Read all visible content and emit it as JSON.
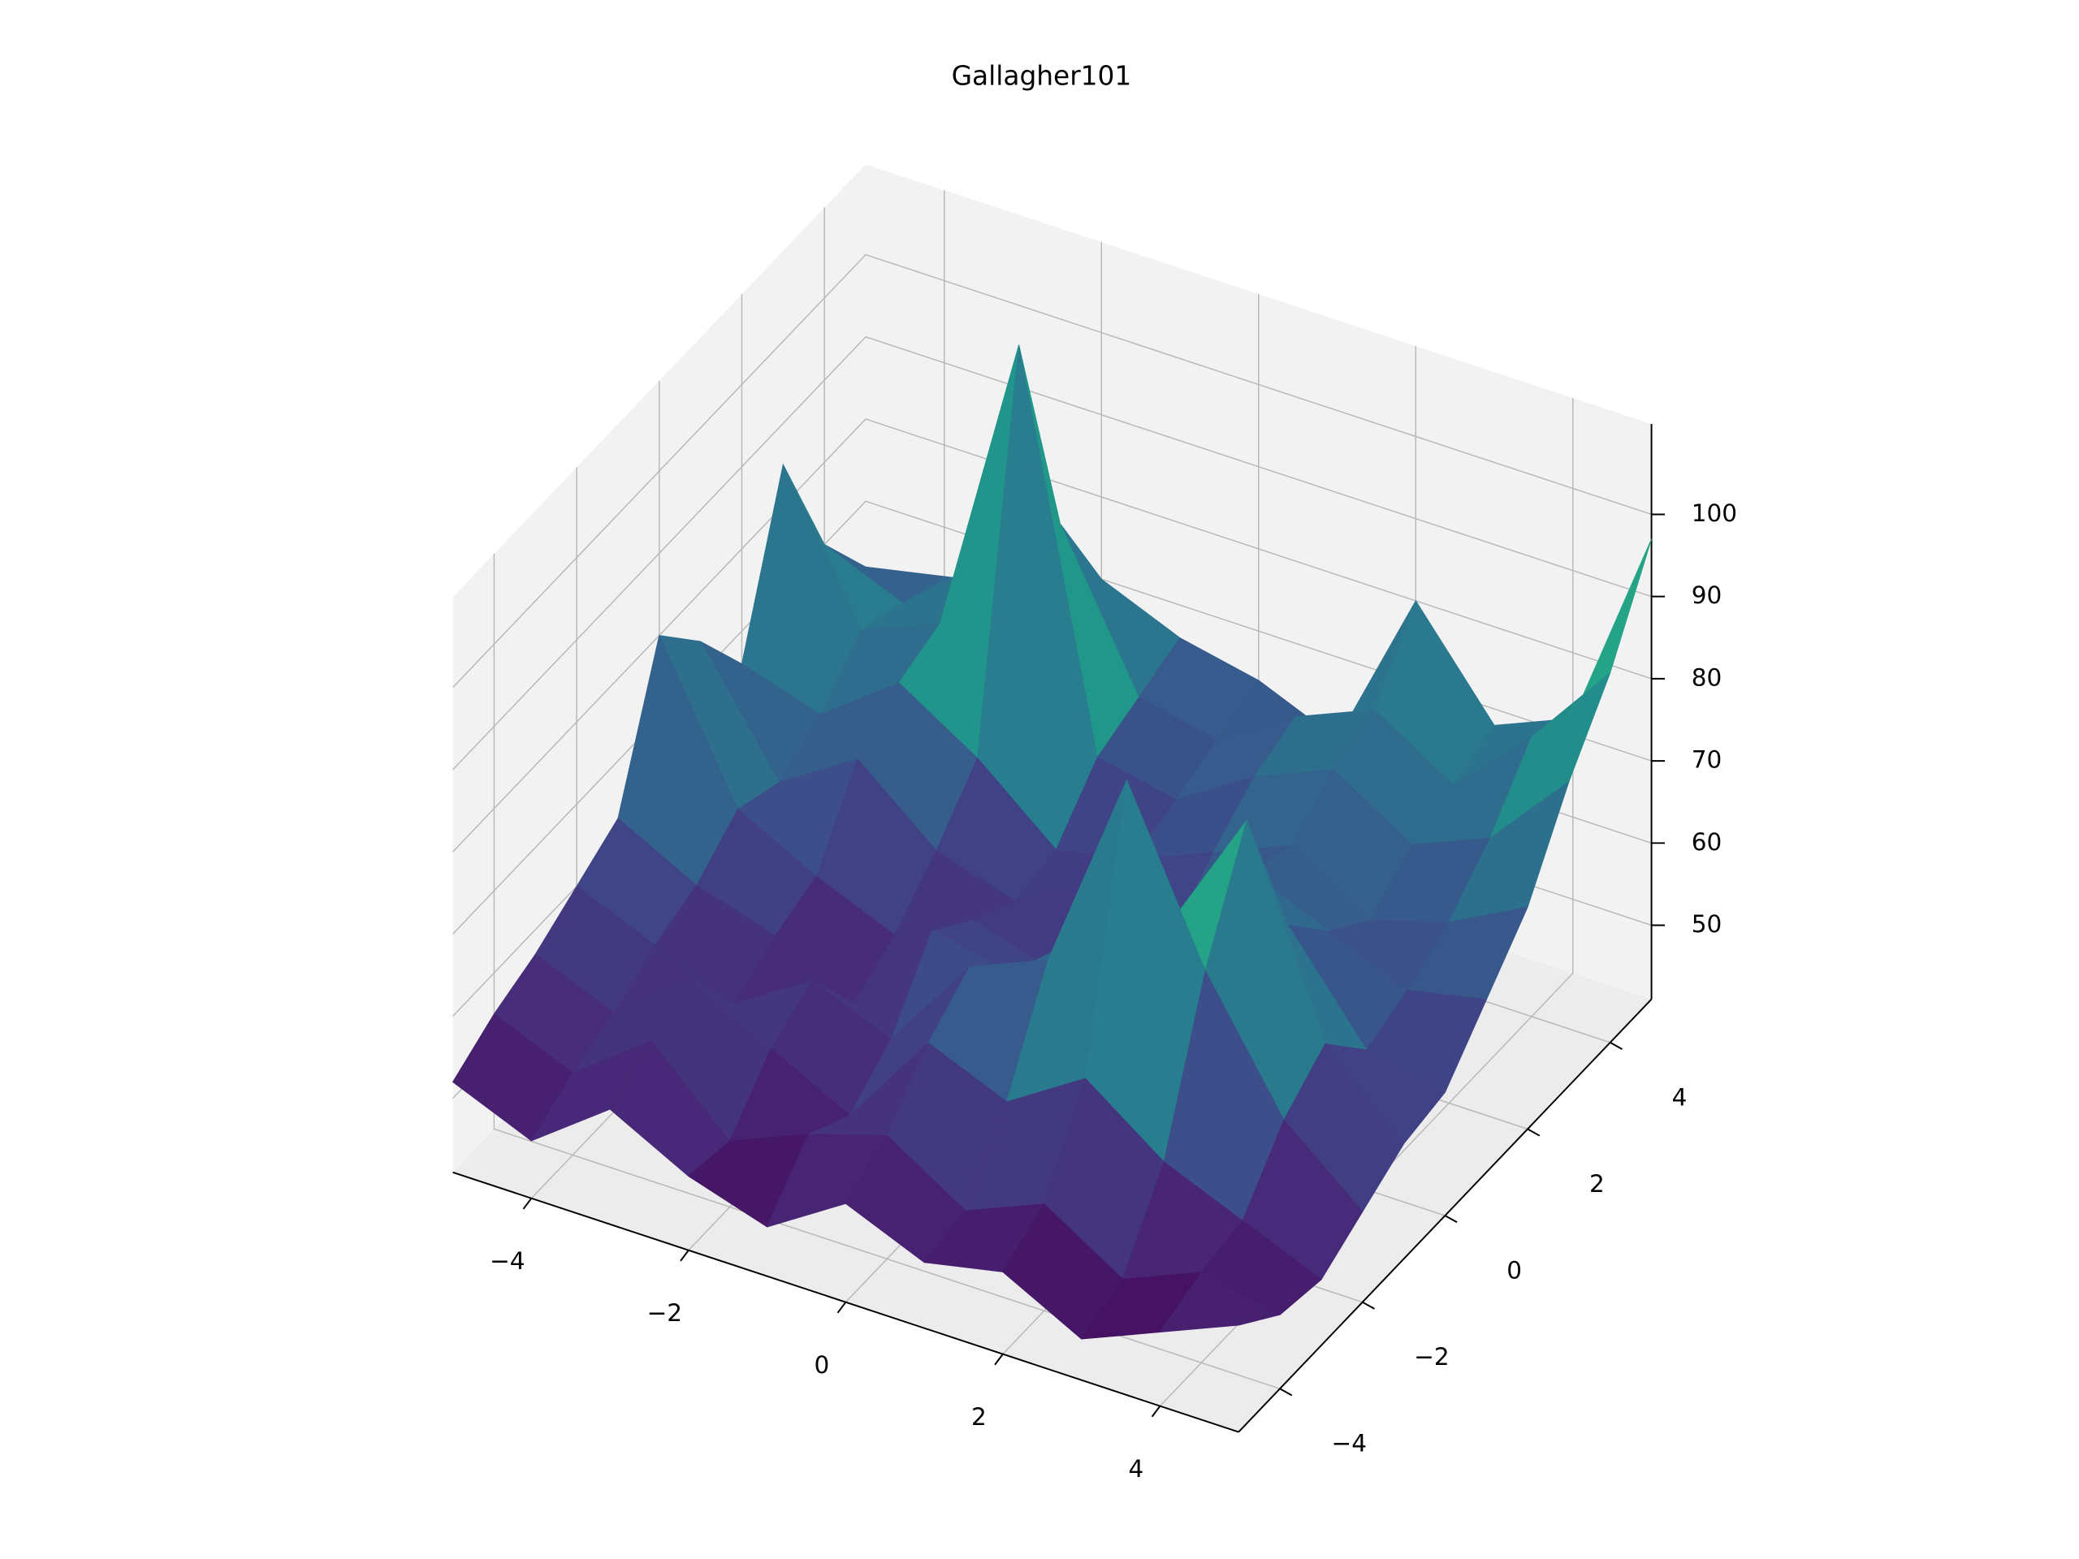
{
  "chart_data": {
    "type": "surface",
    "title": "Gallagher101",
    "x": [
      -5,
      -4,
      -3,
      -2,
      -1,
      0,
      1,
      2,
      3,
      4,
      5
    ],
    "y": [
      -5,
      -4,
      -3,
      -2,
      -1,
      0,
      1,
      2,
      3,
      4,
      5
    ],
    "z": [
      [
        52,
        48,
        55,
        50,
        47,
        53,
        49,
        51,
        46,
        50,
        54
      ],
      [
        55,
        51,
        58,
        49,
        53,
        56,
        50,
        54,
        48,
        52,
        50
      ],
      [
        57,
        53,
        60,
        55,
        50,
        62,
        58,
        64,
        57,
        53,
        49
      ],
      [
        60,
        56,
        52,
        58,
        54,
        66,
        70,
        95,
        75,
        60,
        52
      ],
      [
        63,
        58,
        55,
        50,
        62,
        60,
        68,
        72,
        88,
        64,
        55
      ],
      [
        80,
        62,
        57,
        53,
        58,
        55,
        62,
        66,
        70,
        58,
        56
      ],
      [
        74,
        60,
        66,
        58,
        55,
        60,
        57,
        68,
        64,
        60,
        62
      ],
      [
        66,
        63,
        70,
        64,
        56,
        58,
        62,
        66,
        60,
        63,
        68
      ],
      [
        85,
        68,
        72,
        109,
        62,
        60,
        66,
        70,
        64,
        68,
        78
      ],
      [
        70,
        66,
        74,
        82,
        64,
        62,
        68,
        72,
        66,
        75,
        86
      ],
      [
        62,
        64,
        66,
        70,
        66,
        64,
        60,
        80,
        68,
        72,
        97
      ]
    ],
    "xlim": [
      -5,
      5
    ],
    "ylim": [
      -5,
      5
    ],
    "zlim": [
      41,
      111
    ],
    "xticks": [
      {
        "value": -4,
        "label": "−4"
      },
      {
        "value": -2,
        "label": "−2"
      },
      0,
      2,
      4
    ],
    "yticks": [
      {
        "value": -4,
        "label": "−4"
      },
      {
        "value": -2,
        "label": "−2"
      },
      0,
      2,
      4
    ],
    "zticks": [
      50,
      60,
      70,
      80,
      90,
      100
    ],
    "colormap": "viridis",
    "grid": true
  }
}
